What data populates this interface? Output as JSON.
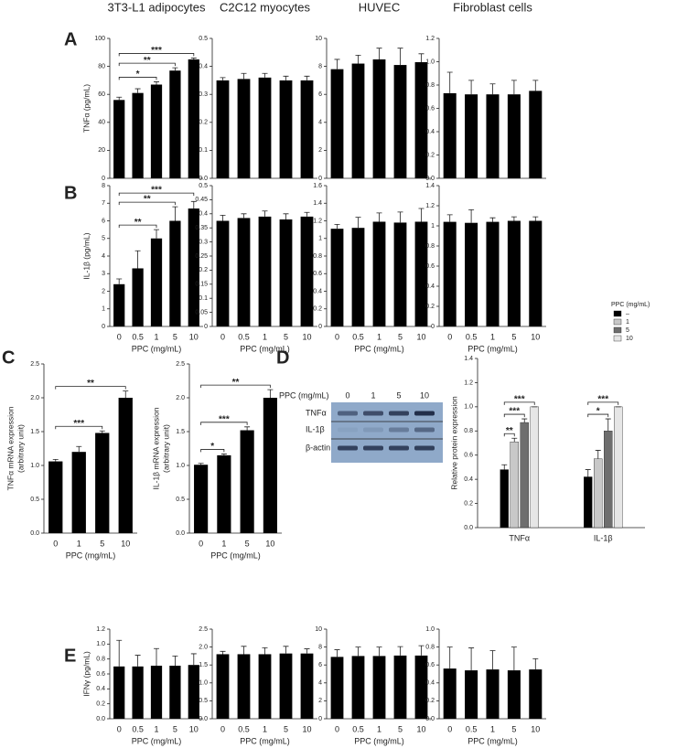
{
  "chart_data": [
    {
      "type": "bar",
      "title": "3T3-L1 adipocytes",
      "panel": "A",
      "ylabel": "TNFα (pg/mL)",
      "values": [
        56,
        61,
        67,
        77,
        85
      ],
      "errors": [
        2,
        3,
        2,
        2,
        1
      ],
      "color": "#000000",
      "ylim": [
        0,
        100
      ],
      "yticks": [
        0,
        20,
        40,
        60,
        80,
        100
      ],
      "annotations": [
        {
          "from": 0,
          "to": 2,
          "text": "*"
        },
        {
          "from": 0,
          "to": 3,
          "text": "**"
        },
        {
          "from": 0,
          "to": 4,
          "text": "***"
        }
      ]
    },
    {
      "type": "bar",
      "title": "C2C12 myocytes",
      "values": [
        0.35,
        0.355,
        0.36,
        0.35,
        0.35
      ],
      "errors": [
        0.01,
        0.02,
        0.015,
        0.015,
        0.015
      ],
      "color": "#000000",
      "ylim": [
        0,
        0.5
      ],
      "yticks": [
        {
          "value": 0,
          "label": "0.0"
        },
        0.1,
        0.2,
        0.3,
        0.4,
        0.5
      ]
    },
    {
      "type": "bar",
      "title": "HUVEC",
      "values": [
        7.8,
        8.2,
        8.5,
        8.1,
        8.3
      ],
      "errors": [
        0.7,
        0.6,
        0.8,
        1.2,
        0.6
      ],
      "color": "#000000",
      "ylim": [
        0,
        10
      ],
      "yticks": [
        0,
        2,
        4,
        6,
        8,
        10
      ]
    },
    {
      "type": "bar",
      "title": "Fibroblast cells",
      "values": [
        0.73,
        0.72,
        0.72,
        0.72,
        0.75
      ],
      "errors": [
        0.18,
        0.12,
        0.09,
        0.12,
        0.09
      ],
      "color": "#000000",
      "ylim": [
        0,
        1.2
      ],
      "yticks": [
        {
          "value": 0,
          "label": "0.0"
        },
        0.2,
        0.4,
        0.6,
        0.8,
        {
          "value": 1,
          "label": "1.0"
        },
        1.2
      ]
    },
    {
      "type": "bar",
      "panel": "B",
      "ylabel": "IL-1β (pg/mL)",
      "xlabel": "PPC (mg/mL)",
      "categories": [
        "0",
        "0.5",
        "1",
        "5",
        "10"
      ],
      "values": [
        2.4,
        3.3,
        5.0,
        6.0,
        6.7
      ],
      "errors": [
        0.3,
        1.0,
        0.5,
        0.8,
        0.4
      ],
      "color": "#000000",
      "ylim": [
        0,
        8
      ],
      "yticks": [
        0,
        1,
        2,
        3,
        4,
        5,
        6,
        7,
        8
      ],
      "annotations": [
        {
          "from": 0,
          "to": 2,
          "text": "**"
        },
        {
          "from": 0,
          "to": 3,
          "text": "**"
        },
        {
          "from": 0,
          "to": 4,
          "text": "***"
        }
      ]
    },
    {
      "type": "bar",
      "xlabel": "PPC (mg/mL)",
      "categories": [
        "0",
        "0.5",
        "1",
        "5",
        "10"
      ],
      "values": [
        0.375,
        0.385,
        0.39,
        0.38,
        0.39
      ],
      "errors": [
        0.02,
        0.015,
        0.02,
        0.02,
        0.015
      ],
      "color": "#000000",
      "ylim": [
        0,
        0.5
      ],
      "yticks": [
        0,
        0.05,
        0.1,
        0.15,
        0.2,
        0.25,
        0.3,
        0.35,
        0.4,
        0.45,
        0.5
      ]
    },
    {
      "type": "bar",
      "xlabel": "PPC (mg/mL)",
      "categories": [
        "0",
        "0.5",
        "1",
        "5",
        "10"
      ],
      "values": [
        1.11,
        1.12,
        1.19,
        1.18,
        1.19
      ],
      "errors": [
        0.05,
        0.12,
        0.1,
        0.12,
        0.15
      ],
      "color": "#000000",
      "ylim": [
        0,
        1.6
      ],
      "yticks": [
        0,
        0.2,
        0.4,
        0.6,
        0.8,
        1,
        1.2,
        1.4,
        1.6
      ]
    },
    {
      "type": "bar",
      "xlabel": "PPC (mg/mL)",
      "categories": [
        "0",
        "0.5",
        "1",
        "5",
        "10"
      ],
      "values": [
        1.04,
        1.03,
        1.04,
        1.05,
        1.05
      ],
      "errors": [
        0.07,
        0.13,
        0.04,
        0.04,
        0.04
      ],
      "color": "#000000",
      "ylim": [
        0,
        1.4
      ],
      "yticks": [
        0,
        0.2,
        0.4,
        0.6,
        0.8,
        1,
        1.2,
        1.4
      ]
    },
    {
      "type": "bar",
      "panel": "C",
      "ylabel": [
        "TNFα mRNA expression",
        "(arbitrary unit)"
      ],
      "xlabel": "PPC (mg/mL)",
      "categories": [
        "0",
        "1",
        "5",
        "10"
      ],
      "values": [
        1.06,
        1.2,
        1.48,
        2.0
      ],
      "errors": [
        0.03,
        0.08,
        0.03,
        0.1
      ],
      "color": "#000000",
      "ylim": [
        0,
        2.5
      ],
      "yticks": [
        {
          "value": 0,
          "label": "0.0"
        },
        0.5,
        {
          "value": 1,
          "label": "1.0"
        },
        1.5,
        {
          "value": 2,
          "label": "2.0"
        },
        2.5
      ],
      "annotations": [
        {
          "from": 0,
          "to": 2,
          "text": "***"
        },
        {
          "from": 0,
          "to": 3,
          "text": "**"
        }
      ]
    },
    {
      "type": "bar",
      "ylabel": [
        "IL-1β mRNA expression",
        "(arbitrary unit)"
      ],
      "xlabel": "PPC (mg/mL)",
      "categories": [
        "0",
        "1",
        "5",
        "10"
      ],
      "values": [
        1.01,
        1.15,
        1.52,
        2.0
      ],
      "errors": [
        0.02,
        0.02,
        0.05,
        0.12
      ],
      "color": "#000000",
      "ylim": [
        0,
        2.5
      ],
      "yticks": [
        {
          "value": 0,
          "label": "0.0"
        },
        0.5,
        {
          "value": 1,
          "label": "1.0"
        },
        1.5,
        {
          "value": 2,
          "label": "2.0"
        },
        2.5
      ],
      "annotations": [
        {
          "from": 0,
          "to": 1,
          "text": "*"
        },
        {
          "from": 0,
          "to": 2,
          "text": "***"
        },
        {
          "from": 0,
          "to": 3,
          "text": "**"
        }
      ]
    },
    {
      "type": "bar",
      "panel": "D",
      "ylabel": "Relative protein expression",
      "categories": [
        "TNFα",
        "IL-1β"
      ],
      "legend_title": "PPC (mg/mL)",
      "series": [
        {
          "name": "–",
          "color": "#000000",
          "values": [
            0.48,
            0.42
          ],
          "errors": [
            0.04,
            0.06
          ]
        },
        {
          "name": "1",
          "color": "#c8c8c8",
          "values": [
            0.71,
            0.57
          ],
          "errors": [
            0.03,
            0.07
          ]
        },
        {
          "name": "5",
          "color": "#6e6e6e",
          "values": [
            0.87,
            0.8
          ],
          "errors": [
            0.03,
            0.1
          ]
        },
        {
          "name": "10",
          "color": "#e6e6e6",
          "values": [
            1.0,
            1.0
          ],
          "errors": [
            0,
            0
          ]
        }
      ],
      "ylim": [
        0,
        1.4
      ],
      "yticks": [
        {
          "value": 0,
          "label": "0.0"
        },
        0.2,
        0.4,
        0.6,
        0.8,
        {
          "value": 1,
          "label": "1.0"
        },
        1.2,
        1.4
      ],
      "annotations": [
        {
          "group": 0,
          "from": 0,
          "to": 1,
          "text": "**"
        },
        {
          "group": 0,
          "from": 0,
          "to": 2,
          "text": "***"
        },
        {
          "group": 0,
          "from": 0,
          "to": 3,
          "text": "***"
        },
        {
          "group": 1,
          "from": 0,
          "to": 2,
          "text": "*"
        },
        {
          "group": 1,
          "from": 0,
          "to": 3,
          "text": "***"
        }
      ]
    },
    {
      "type": "bar",
      "panel": "E",
      "ylabel": "IFNγ (pg/mL)",
      "xlabel": "PPC (mg/mL)",
      "categories": [
        "0",
        "0.5",
        "1",
        "5",
        "10"
      ],
      "values": [
        0.7,
        0.7,
        0.71,
        0.71,
        0.72
      ],
      "errors": [
        0.35,
        0.15,
        0.23,
        0.13,
        0.15
      ],
      "color": "#000000",
      "ylim": [
        0,
        1.2
      ],
      "yticks": [
        {
          "value": 0,
          "label": "0.0"
        },
        0.2,
        0.4,
        0.6,
        0.8,
        {
          "value": 1,
          "label": "1.0"
        },
        1.2
      ]
    },
    {
      "type": "bar",
      "xlabel": "PPC (mg/mL)",
      "categories": [
        "0",
        "0.5",
        "1",
        "5",
        "10"
      ],
      "values": [
        1.8,
        1.8,
        1.8,
        1.82,
        1.82
      ],
      "errors": [
        0.08,
        0.22,
        0.18,
        0.2,
        0.13
      ],
      "color": "#000000",
      "ylim": [
        0,
        2.5
      ],
      "yticks": [
        {
          "value": 0,
          "label": "0.0"
        },
        0.5,
        {
          "value": 1,
          "label": "1.0"
        },
        1.5,
        {
          "value": 2,
          "label": "2.0"
        },
        2.5
      ]
    },
    {
      "type": "bar",
      "xlabel": "PPC (mg/mL)",
      "categories": [
        "0",
        "0.5",
        "1",
        "5",
        "10"
      ],
      "values": [
        6.9,
        7.0,
        7.0,
        7.05,
        7.05
      ],
      "errors": [
        0.8,
        1.0,
        1.0,
        1.0,
        1.1
      ],
      "color": "#000000",
      "ylim": [
        0,
        10
      ],
      "yticks": [
        0,
        2,
        4,
        6,
        8,
        10
      ]
    },
    {
      "type": "bar",
      "xlabel": "PPC (mg/mL)",
      "categories": [
        "0",
        "0.5",
        "1",
        "5",
        "10"
      ],
      "values": [
        0.56,
        0.54,
        0.55,
        0.54,
        0.55
      ],
      "errors": [
        0.24,
        0.25,
        0.21,
        0.26,
        0.12
      ],
      "color": "#000000",
      "ylim": [
        0,
        1
      ],
      "yticks": [
        {
          "value": 0,
          "label": "0.0"
        },
        0.2,
        0.4,
        0.6,
        0.8,
        {
          "value": 1,
          "label": "1.0"
        }
      ]
    }
  ],
  "blot": {
    "header": "PPC (mg/mL)",
    "lanes": [
      "0",
      "1",
      "5",
      "10"
    ],
    "rows": [
      "TNFα",
      "IL-1β",
      "β-actin"
    ]
  }
}
